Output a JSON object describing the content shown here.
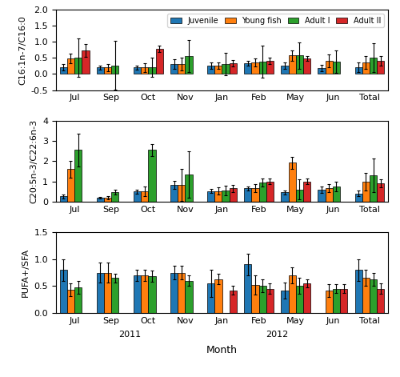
{
  "chart_data": [
    {
      "type": "bar",
      "categories": [
        "Jul",
        "Sep",
        "Oct",
        "Nov",
        "Jan",
        "Feb",
        "May",
        "Jun",
        "Total"
      ],
      "ylabel": "C16:1n-7/C16:0",
      "ylim": [
        -0.5,
        2.0
      ],
      "yticks": [
        -0.5,
        0.0,
        0.5,
        1.0,
        1.5,
        2.0
      ],
      "legend": "upper right",
      "series": [
        {
          "name": "Juvenile",
          "values": [
            0.2,
            0.2,
            0.2,
            0.3,
            0.25,
            0.33,
            0.25,
            0.18,
            0.22
          ],
          "errors": [
            0.1,
            0.07,
            0.06,
            0.15,
            0.1,
            0.08,
            0.1,
            0.1,
            0.15
          ]
        },
        {
          "name": "Young fish",
          "values": [
            0.49,
            0.2,
            0.2,
            0.3,
            0.27,
            0.35,
            0.57,
            0.4,
            0.35
          ],
          "errors": [
            0.15,
            0.12,
            0.13,
            0.2,
            0.1,
            0.12,
            0.15,
            0.2,
            0.2
          ]
        },
        {
          "name": "Adult I",
          "values": [
            0.5,
            0.27,
            0.2,
            0.55,
            0.3,
            0.38,
            0.57,
            0.38,
            0.5
          ],
          "errors": [
            0.6,
            0.75,
            0.3,
            0.5,
            0.35,
            0.5,
            0.4,
            0.35,
            0.45
          ]
        },
        {
          "name": "Adult II",
          "values": [
            0.73,
            null,
            0.77,
            null,
            0.33,
            0.41,
            0.48,
            null,
            0.41
          ],
          "errors": [
            0.2,
            null,
            0.1,
            null,
            0.1,
            0.1,
            0.08,
            null,
            0.15
          ]
        }
      ]
    },
    {
      "type": "bar",
      "categories": [
        "Jul",
        "Sep",
        "Oct",
        "Nov",
        "Jan",
        "Feb",
        "May",
        "Jun",
        "Total"
      ],
      "ylabel": "C20:5n-3/C22:6n-3",
      "ylim": [
        0,
        4.0
      ],
      "yticks": [
        0,
        1,
        2,
        3,
        4
      ],
      "series": [
        {
          "name": "Juvenile",
          "values": [
            0.25,
            0.18,
            0.5,
            0.82,
            0.52,
            0.65,
            0.45,
            0.58,
            0.4
          ],
          "errors": [
            0.1,
            0.05,
            0.1,
            0.2,
            0.1,
            0.1,
            0.1,
            0.15,
            0.15
          ]
        },
        {
          "name": "Young fish",
          "values": [
            1.6,
            0.18,
            0.5,
            0.82,
            0.52,
            0.65,
            1.93,
            0.65,
            0.98
          ],
          "errors": [
            0.4,
            0.08,
            0.25,
            0.8,
            0.18,
            0.2,
            0.3,
            0.2,
            0.45
          ]
        },
        {
          "name": "Adult I",
          "values": [
            2.55,
            0.45,
            2.55,
            1.35,
            0.55,
            0.93,
            0.6,
            0.75,
            1.3
          ],
          "errors": [
            0.8,
            0.12,
            0.3,
            1.15,
            0.25,
            0.2,
            0.5,
            0.25,
            0.85
          ]
        },
        {
          "name": "Adult II",
          "values": [
            null,
            null,
            null,
            null,
            0.65,
            1.0,
            1.0,
            null,
            0.9
          ],
          "errors": [
            null,
            null,
            null,
            null,
            0.18,
            0.15,
            0.15,
            null,
            0.2
          ]
        }
      ]
    },
    {
      "type": "bar",
      "categories": [
        "Jul",
        "Sep",
        "Oct",
        "Nov",
        "Jan",
        "Feb",
        "May",
        "Jun",
        "Total"
      ],
      "ylabel": "PUFA+/SFA",
      "xlabel": "Month",
      "ylim": [
        0,
        1.5
      ],
      "yticks": [
        0.0,
        0.5,
        1.0,
        1.5
      ],
      "annotations": [
        {
          "text": "2011",
          "span": [
            "Jul",
            "Nov"
          ]
        },
        {
          "text": "2012",
          "span": [
            "Jan",
            "Jun"
          ]
        }
      ],
      "series": [
        {
          "name": "Juvenile",
          "values": [
            0.8,
            0.75,
            0.7,
            0.75,
            0.55,
            0.9,
            0.42,
            null,
            0.8
          ],
          "errors": [
            0.2,
            0.18,
            0.1,
            0.12,
            0.25,
            0.2,
            0.15,
            null,
            0.2
          ]
        },
        {
          "name": "Young fish",
          "values": [
            0.43,
            0.75,
            0.7,
            0.75,
            0.63,
            0.52,
            0.7,
            0.42,
            0.65
          ],
          "errors": [
            0.12,
            0.18,
            0.1,
            0.12,
            0.1,
            0.18,
            0.15,
            0.12,
            0.15
          ]
        },
        {
          "name": "Adult I",
          "values": [
            0.48,
            0.65,
            0.68,
            0.6,
            null,
            0.5,
            0.5,
            0.45,
            0.62
          ],
          "errors": [
            0.12,
            0.08,
            0.1,
            0.1,
            null,
            0.12,
            0.15,
            0.08,
            0.12
          ]
        },
        {
          "name": "Adult II",
          "values": [
            null,
            null,
            null,
            null,
            0.42,
            0.45,
            0.55,
            0.45,
            0.45
          ],
          "errors": [
            null,
            null,
            null,
            null,
            0.08,
            0.1,
            0.08,
            0.08,
            0.1
          ]
        }
      ]
    }
  ]
}
